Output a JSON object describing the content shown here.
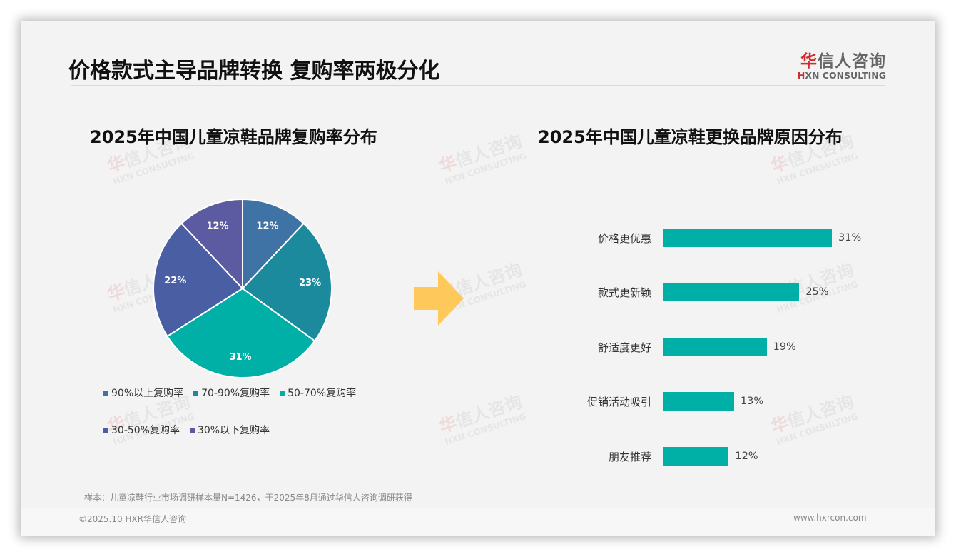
{
  "header": {
    "title": "价格款式主导品牌转换 复购率两极分化",
    "logo": {
      "cn_first": "华",
      "cn_rest": "信人咨询",
      "en_first": "H",
      "en_rest": "XN CONSULTING"
    }
  },
  "watermark": {
    "cn_first": "华",
    "cn_rest": "信人咨询",
    "en": "HXN CONSULTING"
  },
  "left_chart": {
    "title": "2025年中国儿童凉鞋品牌复购率分布",
    "legend": [
      {
        "label": "90%以上复购率",
        "color": "#3f73a6"
      },
      {
        "label": "70-90%复购率",
        "color": "#1a8a9c"
      },
      {
        "label": "50-70%复购率",
        "color": "#00afa5"
      },
      {
        "label": "30-50%复购率",
        "color": "#4a5ea3"
      },
      {
        "label": "30%以下复购率",
        "color": "#5c5aa0"
      }
    ],
    "slice_labels": [
      "12%",
      "23%",
      "31%",
      "22%",
      "12%"
    ]
  },
  "right_chart": {
    "title": "2025年中国儿童凉鞋更换品牌原因分布",
    "bars": [
      {
        "label": "价格更优惠",
        "value": 31,
        "display": "31%"
      },
      {
        "label": "款式更新颖",
        "value": 25,
        "display": "25%"
      },
      {
        "label": "舒适度更好",
        "value": 19,
        "display": "19%"
      },
      {
        "label": "促销活动吸引",
        "value": 13,
        "display": "13%"
      },
      {
        "label": "朋友推荐",
        "value": 12,
        "display": "12%"
      }
    ],
    "bar_color": "#00afa5"
  },
  "arrow": {
    "color": "#ffc85a",
    "icon": "right-arrow-icon"
  },
  "footer": {
    "note": "样本：儿童凉鞋行业市场调研样本量N=1426，于2025年8月通过华信人咨询调研获得",
    "copyright": "©2025.10 HXR华信人咨询",
    "website": "www.hxrcon.com"
  },
  "chart_data": [
    {
      "type": "pie",
      "title": "2025年中国儿童凉鞋品牌复购率分布",
      "categories": [
        "90%以上复购率",
        "70-90%复购率",
        "50-70%复购率",
        "30-50%复购率",
        "30%以下复购率"
      ],
      "values": [
        12,
        23,
        31,
        22,
        12
      ],
      "colors": [
        "#3f73a6",
        "#1a8a9c",
        "#00afa5",
        "#4a5ea3",
        "#5c5aa0"
      ],
      "unit": "%",
      "legend_position": "bottom"
    },
    {
      "type": "bar",
      "orientation": "horizontal",
      "title": "2025年中国儿童凉鞋更换品牌原因分布",
      "categories": [
        "价格更优惠",
        "款式更新颖",
        "舒适度更好",
        "促销活动吸引",
        "朋友推荐"
      ],
      "values": [
        31,
        25,
        19,
        13,
        12
      ],
      "unit": "%",
      "xlabel": "",
      "ylabel": "",
      "grid": false,
      "data_labels": true
    }
  ]
}
